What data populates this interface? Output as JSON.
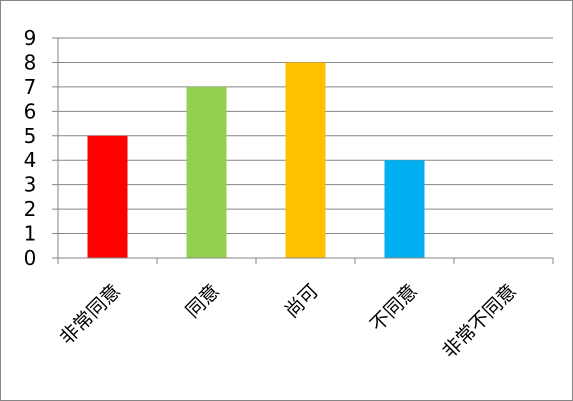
{
  "chart_data": {
    "type": "bar",
    "categories": [
      "非常同意",
      "同意",
      "尚可",
      "不同意",
      "非常不同意"
    ],
    "values": [
      5,
      7,
      8,
      4,
      0
    ],
    "colors": [
      "#ff0000",
      "#92d050",
      "#ffc000",
      "#00b0f0",
      "#7f7f7f"
    ],
    "ylim": [
      0,
      9
    ],
    "yticks": [
      "0",
      "1",
      "2",
      "3",
      "4",
      "5",
      "6",
      "7",
      "8",
      "9"
    ],
    "grid": true,
    "legend": "none",
    "title": "",
    "xlabel": "",
    "ylabel": ""
  }
}
